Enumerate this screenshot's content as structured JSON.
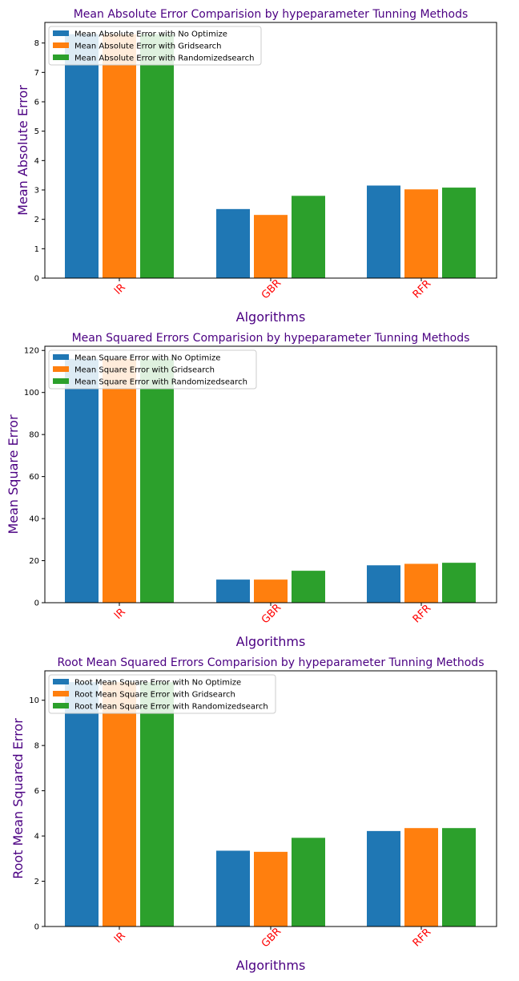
{
  "chart_data": [
    {
      "type": "bar",
      "title": "Mean Absolute Error Comparision by hypeparameter Tunning Methods",
      "xlabel": "Algorithms",
      "ylabel": "Mean Absolute Error",
      "categories": [
        "lR",
        "GBR",
        "RFR"
      ],
      "ylim": [
        0,
        8.7
      ],
      "yticks": [
        0,
        1,
        2,
        3,
        4,
        5,
        6,
        7,
        8
      ],
      "legend_position": "top-left",
      "series": [
        {
          "name": "Mean Absolute Error with No Optimize",
          "color": "#1f77b4",
          "values": [
            8.3,
            2.35,
            3.15
          ]
        },
        {
          "name": "Mean Absolute Error with Gridsearch",
          "color": "#ff7f0e",
          "values": [
            8.3,
            2.15,
            3.02
          ]
        },
        {
          "name": "Mean Absolute Error with Randomizedsearch",
          "color": "#2ca02c",
          "values": [
            8.3,
            2.8,
            3.08
          ]
        }
      ]
    },
    {
      "type": "bar",
      "title": "Mean Squared Errors Comparision by hypeparameter Tunning Methods",
      "xlabel": "Algorithms",
      "ylabel": "Mean Square Error",
      "categories": [
        "lR",
        "GBR",
        "RFR"
      ],
      "ylim": [
        0,
        122
      ],
      "yticks": [
        0,
        20,
        40,
        60,
        80,
        100,
        120
      ],
      "legend_position": "top-left",
      "series": [
        {
          "name": " Mean Square Error with No Optimize",
          "color": "#1f77b4",
          "values": [
            116,
            11.0,
            17.8
          ]
        },
        {
          "name": " Mean Square Error with Gridsearch",
          "color": "#ff7f0e",
          "values": [
            116,
            11.0,
            18.5
          ]
        },
        {
          "name": " Mean Square Error with Randomizedsearch",
          "color": "#2ca02c",
          "values": [
            116,
            15.2,
            19.0
          ]
        }
      ]
    },
    {
      "type": "bar",
      "title": "Root Mean Squared Errors Comparision by hypeparameter Tunning Methods",
      "xlabel": "Algorithms",
      "ylabel": "Root Mean Squared Error",
      "categories": [
        "lR",
        "GBR",
        "RFR"
      ],
      "ylim": [
        0,
        11.3
      ],
      "yticks": [
        0,
        2,
        4,
        6,
        8,
        10
      ],
      "legend_position": "top-left",
      "series": [
        {
          "name": "Root Mean Square Error with No Optimize",
          "color": "#1f77b4",
          "values": [
            10.8,
            3.35,
            4.22
          ]
        },
        {
          "name": "Root Mean Square Error with Gridsearch",
          "color": "#ff7f0e",
          "values": [
            10.8,
            3.3,
            4.35
          ]
        },
        {
          "name": "Root Mean Square Error with Randomizedsearch",
          "color": "#2ca02c",
          "values": [
            10.8,
            3.92,
            4.35
          ]
        }
      ]
    }
  ]
}
